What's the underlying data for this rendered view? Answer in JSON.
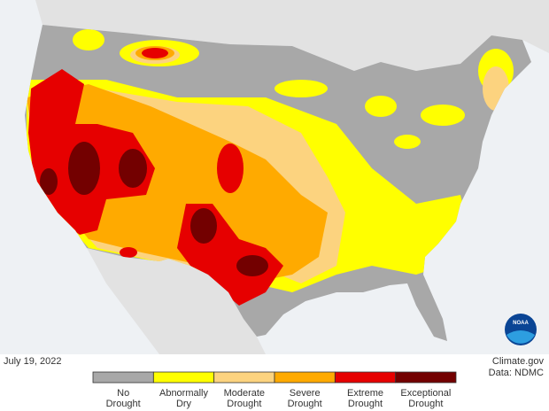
{
  "map": {
    "date": "July 19, 2022",
    "credit": "Climate.gov",
    "source": "Data: NDMC",
    "logo": "NOAA",
    "legend": {
      "items": [
        {
          "lines": [
            "No",
            "Drought"
          ],
          "color": "#a8a8a8"
        },
        {
          "lines": [
            "Abnormally",
            "Dry"
          ],
          "color": "#ffff00"
        },
        {
          "lines": [
            "Moderate",
            "Drought"
          ],
          "color": "#fcd37f"
        },
        {
          "lines": [
            "Severe",
            "Drought"
          ],
          "color": "#ffaa00"
        },
        {
          "lines": [
            "Extreme",
            "Drought"
          ],
          "color": "#e60000"
        },
        {
          "lines": [
            "Exceptional",
            "Drought"
          ],
          "color": "#730000"
        }
      ]
    }
  }
}
